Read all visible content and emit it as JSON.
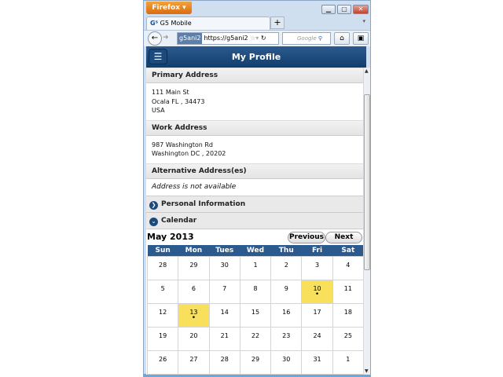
{
  "browser": {
    "menu_button": "Firefox",
    "tab_title": "G5 Mobile",
    "site_badge": "g5ani2",
    "url": "https://g5ani2",
    "search_placeholder": "Google"
  },
  "header": {
    "title": "My Profile"
  },
  "primary": {
    "title": "Primary Address",
    "lines": [
      "111 Main St",
      "Ocala FL , 34473",
      "USA"
    ]
  },
  "work": {
    "title": "Work Address",
    "lines": [
      "987 Washington Rd",
      "Washington DC , 20202"
    ]
  },
  "alt": {
    "title": "Alternative Address(es)",
    "message": "Address is not available"
  },
  "personal": {
    "title": "Personal Information"
  },
  "calendar": {
    "title": "Calendar",
    "month": "May 2013",
    "prev": "Previous",
    "next": "Next",
    "days": [
      "Sun",
      "Mon",
      "Tues",
      "Wed",
      "Thu",
      "Fri",
      "Sat"
    ],
    "weeks": [
      [
        "28",
        "29",
        "30",
        "1",
        "2",
        "3",
        "4"
      ],
      [
        "5",
        "6",
        "7",
        "8",
        "9",
        "10",
        "11"
      ],
      [
        "12",
        "13",
        "14",
        "15",
        "16",
        "17",
        "18"
      ],
      [
        "19",
        "20",
        "21",
        "22",
        "23",
        "24",
        "25"
      ],
      [
        "26",
        "27",
        "28",
        "29",
        "30",
        "31",
        "1"
      ]
    ],
    "events": [
      "10",
      "13"
    ],
    "event_color": "#f8e05d",
    "header_color": "#2b5a8e"
  }
}
